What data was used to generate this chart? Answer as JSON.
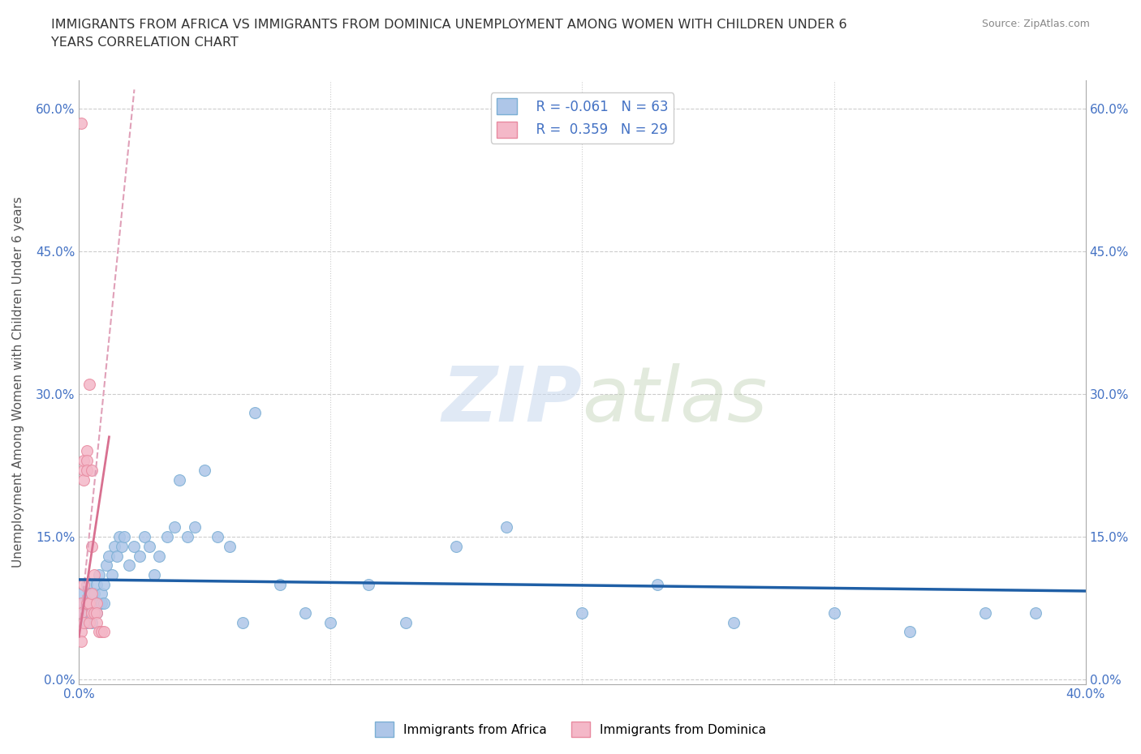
{
  "title": "IMMIGRANTS FROM AFRICA VS IMMIGRANTS FROM DOMINICA UNEMPLOYMENT AMONG WOMEN WITH CHILDREN UNDER 6\nYEARS CORRELATION CHART",
  "source": "Source: ZipAtlas.com",
  "ylabel": "Unemployment Among Women with Children Under 6 years",
  "xlim": [
    0,
    0.4
  ],
  "ylim": [
    -0.005,
    0.63
  ],
  "yticks": [
    0.0,
    0.15,
    0.3,
    0.45,
    0.6
  ],
  "ytick_labels": [
    "0.0%",
    "15.0%",
    "30.0%",
    "45.0%",
    "60.0%"
  ],
  "xticks": [
    0.0,
    0.1,
    0.2,
    0.3,
    0.4
  ],
  "xtick_labels": [
    "0.0%",
    "",
    "",
    "",
    "40.0%"
  ],
  "africa_color": "#aec6e8",
  "africa_edge": "#7bafd4",
  "dominica_color": "#f4b8c8",
  "dominica_edge": "#e88aa0",
  "trend_africa_color": "#1f5fa6",
  "trend_dominica_color": "#d87090",
  "trend_dominica_dashed_color": "#e0a0b8",
  "legend_R_africa": "R = -0.061",
  "legend_N_africa": "N = 63",
  "legend_R_dominica": "R =  0.359",
  "legend_N_dominica": "N = 29",
  "watermark": "ZIPatlas",
  "title_color": "#333333",
  "axis_label_color": "#4472c4",
  "africa_x": [
    0.001,
    0.001,
    0.002,
    0.002,
    0.003,
    0.003,
    0.003,
    0.004,
    0.004,
    0.004,
    0.005,
    0.005,
    0.005,
    0.006,
    0.006,
    0.007,
    0.007,
    0.007,
    0.008,
    0.008,
    0.009,
    0.009,
    0.01,
    0.01,
    0.011,
    0.012,
    0.013,
    0.014,
    0.015,
    0.016,
    0.017,
    0.018,
    0.02,
    0.022,
    0.024,
    0.026,
    0.028,
    0.03,
    0.032,
    0.035,
    0.038,
    0.04,
    0.043,
    0.046,
    0.05,
    0.055,
    0.06,
    0.065,
    0.07,
    0.08,
    0.09,
    0.1,
    0.115,
    0.13,
    0.15,
    0.17,
    0.2,
    0.23,
    0.26,
    0.3,
    0.33,
    0.36,
    0.38
  ],
  "africa_y": [
    0.07,
    0.09,
    0.07,
    0.08,
    0.06,
    0.08,
    0.1,
    0.07,
    0.08,
    0.09,
    0.06,
    0.08,
    0.09,
    0.07,
    0.09,
    0.07,
    0.08,
    0.1,
    0.08,
    0.11,
    0.08,
    0.09,
    0.08,
    0.1,
    0.12,
    0.13,
    0.11,
    0.14,
    0.13,
    0.15,
    0.14,
    0.15,
    0.12,
    0.14,
    0.13,
    0.15,
    0.14,
    0.11,
    0.13,
    0.15,
    0.16,
    0.21,
    0.15,
    0.16,
    0.22,
    0.15,
    0.14,
    0.06,
    0.28,
    0.1,
    0.07,
    0.06,
    0.1,
    0.06,
    0.14,
    0.16,
    0.07,
    0.1,
    0.06,
    0.07,
    0.05,
    0.07,
    0.07
  ],
  "dominica_x": [
    0.001,
    0.001,
    0.001,
    0.001,
    0.001,
    0.002,
    0.002,
    0.002,
    0.002,
    0.002,
    0.003,
    0.003,
    0.003,
    0.003,
    0.004,
    0.004,
    0.004,
    0.005,
    0.005,
    0.005,
    0.005,
    0.006,
    0.006,
    0.007,
    0.007,
    0.007,
    0.008,
    0.009,
    0.01
  ],
  "dominica_y": [
    0.585,
    0.08,
    0.07,
    0.05,
    0.04,
    0.22,
    0.23,
    0.21,
    0.1,
    0.06,
    0.24,
    0.23,
    0.22,
    0.08,
    0.31,
    0.08,
    0.06,
    0.22,
    0.14,
    0.09,
    0.07,
    0.11,
    0.07,
    0.08,
    0.07,
    0.06,
    0.05,
    0.05,
    0.05
  ]
}
